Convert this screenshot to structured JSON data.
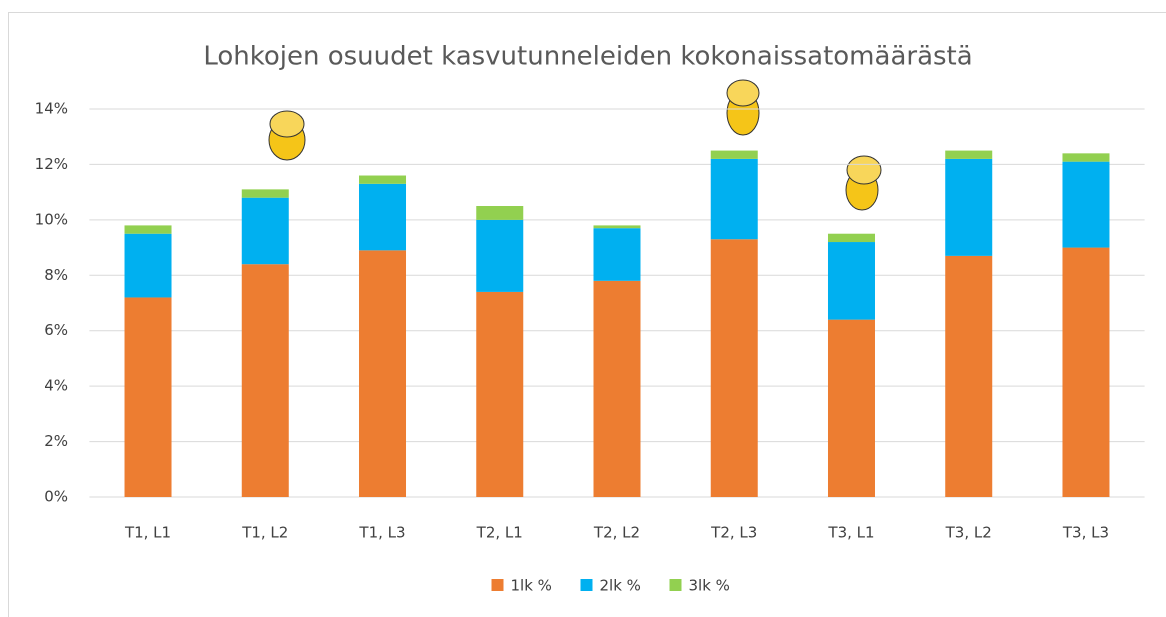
{
  "chart_data": {
    "type": "stacked_bar",
    "title": "Lohkojen osuudet kasvutunneleiden kokonaissatomäärästä",
    "categories": [
      "T1, L1",
      "T1, L2",
      "T1, L3",
      "T2, L1",
      "T2, L2",
      "T2, L3",
      "T3, L1",
      "T3, L2",
      "T3, L3"
    ],
    "series": [
      {
        "name": "1lk %",
        "color": "#ed7d31",
        "values": [
          7.2,
          8.4,
          8.9,
          7.4,
          7.8,
          9.3,
          6.4,
          8.7,
          9.0
        ]
      },
      {
        "name": "2lk %",
        "color": "#00b0f0",
        "values": [
          2.3,
          2.4,
          2.4,
          2.6,
          1.9,
          2.9,
          2.8,
          3.5,
          3.1
        ]
      },
      {
        "name": "3lk %",
        "color": "#92d050",
        "values": [
          0.3,
          0.3,
          0.3,
          0.5,
          0.1,
          0.3,
          0.3,
          0.3,
          0.3
        ]
      }
    ],
    "ylim": [
      0,
      14
    ],
    "yticks": [
      {
        "value": 0,
        "label": "0%"
      },
      {
        "value": 2,
        "label": "2%"
      },
      {
        "value": 4,
        "label": "4%"
      },
      {
        "value": 6,
        "label": "6%"
      },
      {
        "value": 8,
        "label": "8%"
      },
      {
        "value": 10,
        "label": "10%"
      },
      {
        "value": 12,
        "label": "12%"
      },
      {
        "value": 14,
        "label": "14%"
      }
    ],
    "grid": true,
    "legend": "bottom"
  }
}
